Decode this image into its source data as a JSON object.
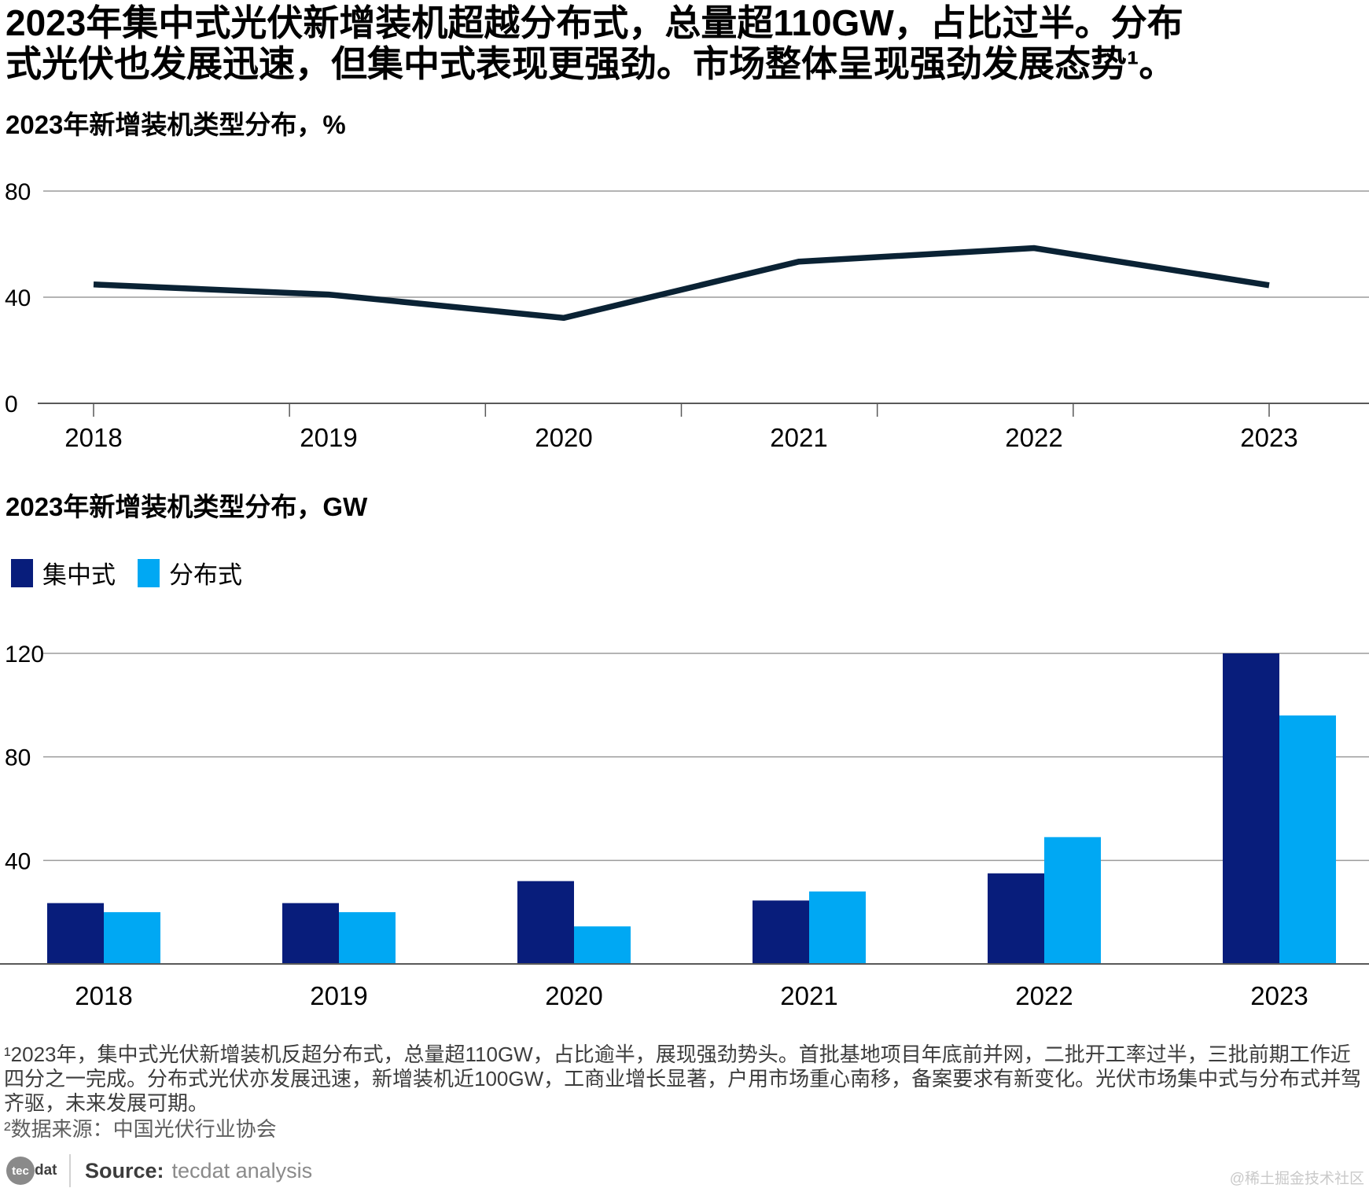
{
  "headline": {
    "lines": [
      "2023年集中式光伏新增装机超越分布式，总量超110GW，占比过半。分布",
      "式光伏也发展迅速，但集中式表现更强劲。市场整体呈现强劲发展态势¹。"
    ]
  },
  "chart1": {
    "title": "2023年新增装机类型分布，%"
  },
  "chart2": {
    "title": "2023年新增装机类型分布，GW",
    "legend": [
      {
        "label": "集中式",
        "color": "#081d7b"
      },
      {
        "label": "分布式",
        "color": "#00a8f3"
      }
    ]
  },
  "chart_data": [
    {
      "type": "line",
      "title": "2023年新增装机类型分布，%",
      "x": [
        "2018",
        "2019",
        "2020",
        "2021",
        "2022",
        "2023"
      ],
      "series": [
        {
          "name": "",
          "values": [
            44.8,
            41.0,
            32.2,
            53.4,
            58.5,
            44.5
          ]
        }
      ],
      "xlabel": "",
      "ylabel": "%",
      "ylim": [
        0,
        80
      ],
      "yticks": [
        0,
        40,
        80
      ],
      "grid": true,
      "legend": false,
      "line_color": "#0a2234"
    },
    {
      "type": "bar",
      "title": "2023年新增装机类型分布，GW",
      "categories": [
        "2018",
        "2019",
        "2020",
        "2021",
        "2022",
        "2023"
      ],
      "series": [
        {
          "name": "集中式",
          "color": "#081d7b",
          "values": [
            23.5,
            23.5,
            32,
            24.5,
            35,
            120
          ]
        },
        {
          "name": "分布式",
          "color": "#00a8f3",
          "values": [
            20,
            20,
            14.5,
            28,
            49,
            96
          ]
        }
      ],
      "xlabel": "",
      "ylabel": "GW",
      "ylim": [
        0,
        120
      ],
      "yticks": [
        40,
        80,
        120
      ],
      "grid": true,
      "legend_position": "top-left"
    }
  ],
  "footnotes": [
    "¹2023年，集中式光伏新增装机反超分布式，总量超110GW，占比逾半，展现强劲势头。首批基地项目年底前并网，二批开工率过半，三批前期工作近四分之一完成。分布式光伏亦发展迅速，新增装机近100GW，工商业增长显著，户用市场重心南移，备案要求有新变化。光伏市场集中式与分布式并驾齐驱，未来发展可期。",
    "²数据来源：中国光伏行业协会"
  ],
  "source": {
    "logo_tec": "tec",
    "logo_dat": "dat",
    "label": "Source:",
    "text": "tecdat analysis"
  },
  "watermark": "@稀土掘金技术社区"
}
